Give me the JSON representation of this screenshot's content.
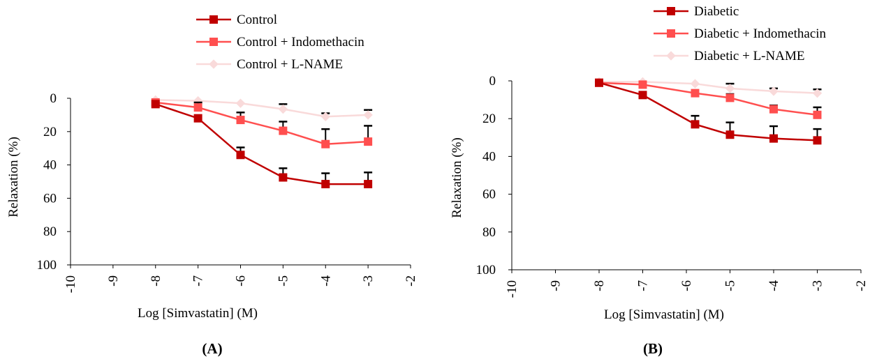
{
  "chart_data": [
    {
      "type": "line",
      "panel_label": "(A)",
      "xlabel": "Log [Simvastatin] (M)",
      "ylabel": "Relaxation (%)",
      "xlim": [
        -10,
        -2
      ],
      "ylim": [
        0,
        100
      ],
      "y_inverted": true,
      "x_ticks": [
        "-10",
        "-9",
        "-8",
        "-7",
        "-6",
        "-5",
        "-4",
        "-3",
        "-2"
      ],
      "y_ticks": [
        "0",
        "20",
        "40",
        "60",
        "80",
        "100"
      ],
      "grid": false,
      "legend_position": "top",
      "x": [
        -8,
        -7,
        -6,
        -5,
        -4,
        -3
      ],
      "series": [
        {
          "name": "Control",
          "color": "#c00000",
          "marker": "square",
          "values": [
            3.5,
            12,
            34,
            47.5,
            51.5,
            51.5
          ],
          "error": [
            0,
            0,
            4.5,
            5.5,
            6.5,
            7
          ]
        },
        {
          "name": "Control + Indomethacin",
          "color": "#ff4f4f",
          "marker": "square",
          "values": [
            2.5,
            5.5,
            13,
            19.5,
            27.5,
            26
          ],
          "error": [
            0,
            3,
            4.5,
            5.5,
            9,
            9.5
          ]
        },
        {
          "name": "Control + L-NAME",
          "color": "#f9dada",
          "marker": "diamond",
          "values": [
            1,
            1.5,
            3,
            6.5,
            11,
            10
          ],
          "error": [
            0,
            0,
            0,
            3,
            2,
            3
          ]
        }
      ]
    },
    {
      "type": "line",
      "panel_label": "(B)",
      "xlabel": "Log [Simvastatin] (M)",
      "ylabel": "Relaxation (%)",
      "xlim": [
        -10,
        -2
      ],
      "ylim": [
        0,
        100
      ],
      "y_inverted": true,
      "x_ticks": [
        "-10",
        "-9",
        "-8",
        "-7",
        "-6",
        "-5",
        "-4",
        "-3",
        "-2"
      ],
      "y_ticks": [
        "0",
        "20",
        "40",
        "60",
        "80",
        "100"
      ],
      "grid": false,
      "legend_position": "top",
      "x": [
        -8,
        -7,
        -5.8,
        -5,
        -4,
        -3
      ],
      "series": [
        {
          "name": "Diabetic",
          "color": "#c00000",
          "marker": "square",
          "values": [
            1,
            7.5,
            23,
            28.5,
            30.5,
            31.5
          ],
          "error": [
            0,
            0,
            4.5,
            6.5,
            6.5,
            6
          ]
        },
        {
          "name": "Diabetic + Indomethacin",
          "color": "#ff4f4f",
          "marker": "square",
          "values": [
            1,
            2,
            6.5,
            9,
            15,
            18
          ],
          "error": [
            0,
            0,
            0,
            2,
            2,
            4
          ]
        },
        {
          "name": "Diabetic + L-NAME",
          "color": "#f9dada",
          "marker": "diamond",
          "values": [
            0.5,
            0.5,
            1.5,
            4,
            5.5,
            6.5
          ],
          "error": [
            0,
            0,
            0,
            2.5,
            1.5,
            2
          ]
        }
      ]
    }
  ]
}
